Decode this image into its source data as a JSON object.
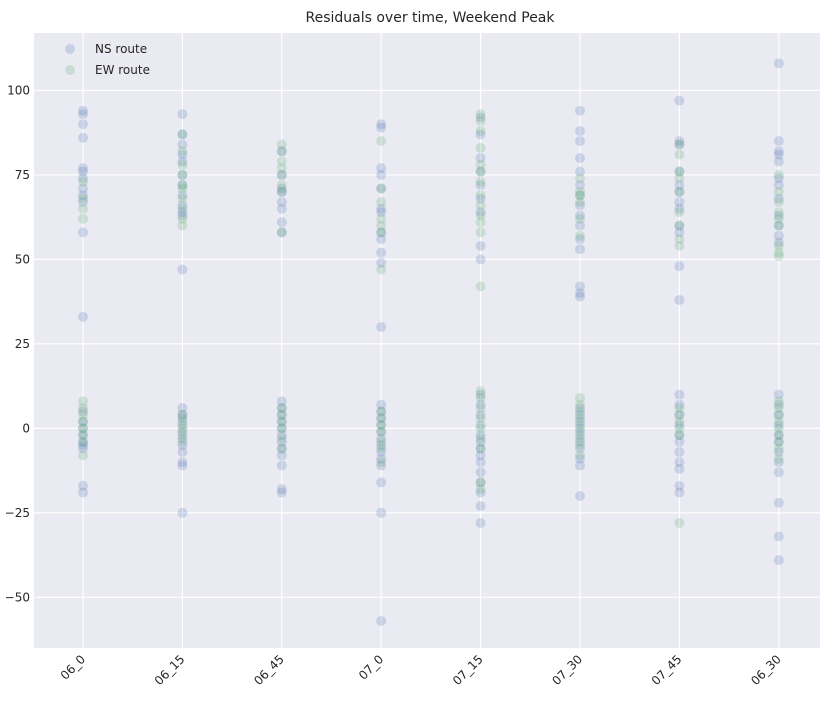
{
  "chart_data": {
    "type": "scatter",
    "title": "Residuals over time, Weekend Peak",
    "xlabel": "",
    "ylabel": "",
    "categories": [
      "06_0",
      "06_15",
      "06_45",
      "07_0",
      "07_15",
      "07_30",
      "07_45",
      "06_30"
    ],
    "y_ticks": [
      -50,
      -25,
      0,
      25,
      50,
      75,
      100
    ],
    "y_tick_labels": [
      "−50",
      "−25",
      "0",
      "25",
      "50",
      "75",
      "100"
    ],
    "ylim": [
      -65,
      117
    ],
    "grid": true,
    "legend_position": "top-left",
    "series": [
      {
        "name": "NS route",
        "color": "#4c72b0",
        "points": [
          {
            "x": "06_0",
            "ys": [
              94,
              93,
              90,
              86,
              77,
              76,
              74,
              71,
              69,
              67,
              58,
              33,
              5,
              2,
              0,
              -2,
              -4,
              -5,
              -6,
              -17,
              -19
            ]
          },
          {
            "x": "06_15",
            "ys": [
              93,
              87,
              84,
              81,
              79,
              75,
              72,
              69,
              66,
              64,
              63,
              47,
              6,
              4,
              3,
              1,
              -1,
              -3,
              -5,
              -7,
              -10,
              -11,
              -25
            ]
          },
          {
            "x": "06_45",
            "ys": [
              82,
              75,
              71,
              70,
              67,
              65,
              61,
              58,
              8,
              6,
              4,
              2,
              0,
              -2,
              -4,
              -6,
              -8,
              -11,
              -18,
              -19
            ]
          },
          {
            "x": "07_0",
            "ys": [
              90,
              89,
              77,
              75,
              71,
              65,
              64,
              58,
              56,
              52,
              49,
              30,
              7,
              5,
              3,
              1,
              -1,
              -3,
              -5,
              -7,
              -9,
              -11,
              -16,
              -25,
              -57
            ]
          },
          {
            "x": "07_15",
            "ys": [
              92,
              87,
              80,
              76,
              72,
              68,
              64,
              54,
              50,
              10,
              7,
              4,
              1,
              -2,
              -4,
              -6,
              -8,
              -10,
              -13,
              -16,
              -19,
              -23,
              -28
            ]
          },
          {
            "x": "07_30",
            "ys": [
              94,
              88,
              85,
              80,
              76,
              72,
              69,
              66,
              63,
              60,
              56,
              53,
              42,
              40,
              39,
              6,
              4,
              2,
              0,
              -2,
              -4,
              -6,
              -9,
              -11,
              -20
            ]
          },
          {
            "x": "07_45",
            "ys": [
              97,
              85,
              84,
              76,
              72,
              70,
              67,
              65,
              60,
              58,
              48,
              38,
              10,
              7,
              4,
              1,
              -2,
              -4,
              -7,
              -10,
              -12,
              -17,
              -19
            ]
          },
          {
            "x": "06_30",
            "ys": [
              108,
              85,
              82,
              81,
              79,
              74,
              72,
              68,
              63,
              60,
              57,
              55,
              10,
              7,
              4,
              1,
              -2,
              -4,
              -7,
              -10,
              -13,
              -22,
              -32,
              -39
            ]
          }
        ]
      },
      {
        "name": "EW route",
        "color": "#55a868",
        "points": [
          {
            "x": "06_0",
            "ys": [
              73,
              68,
              65,
              62,
              8,
              6,
              4,
              2,
              0,
              -2,
              -4,
              -8
            ]
          },
          {
            "x": "06_15",
            "ys": [
              87,
              82,
              78,
              75,
              72,
              71,
              68,
              65,
              62,
              60,
              4,
              2,
              0,
              -2,
              -4
            ]
          },
          {
            "x": "06_45",
            "ys": [
              84,
              82,
              79,
              77,
              75,
              72,
              70,
              58,
              6,
              4,
              2,
              0,
              -3,
              -6
            ]
          },
          {
            "x": "07_0",
            "ys": [
              85,
              71,
              67,
              62,
              60,
              58,
              47,
              5,
              3,
              1,
              -1,
              -4,
              -6,
              -10
            ]
          },
          {
            "x": "07_15",
            "ys": [
              93,
              91,
              88,
              83,
              78,
              76,
              73,
              69,
              66,
              63,
              61,
              58,
              42,
              11,
              9,
              6,
              3,
              0,
              -3,
              -6,
              -16,
              -18
            ]
          },
          {
            "x": "07_30",
            "ys": [
              74,
              70,
              69,
              67,
              62,
              57,
              9,
              7,
              5,
              3,
              1,
              -1,
              -3,
              -5,
              -8
            ]
          },
          {
            "x": "07_45",
            "ys": [
              84,
              81,
              76,
              74,
              70,
              64,
              60,
              56,
              54,
              6,
              4,
              2,
              0,
              -2,
              -28
            ]
          },
          {
            "x": "06_30",
            "ys": [
              75,
              70,
              67,
              64,
              62,
              60,
              54,
              52,
              51,
              8,
              6,
              4,
              2,
              0,
              -2,
              -4,
              -6,
              -9
            ]
          }
        ]
      }
    ]
  }
}
